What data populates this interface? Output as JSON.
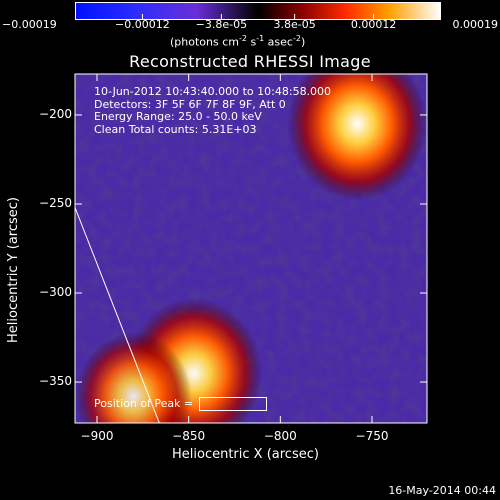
{
  "chart_data": {
    "type": "heatmap",
    "title": "Reconstructed RHESSI Image",
    "xlabel": "Heliocentric X (arcsec)",
    "ylabel": "Heliocentric Y (arcsec)",
    "xlim": [
      -912,
      -720
    ],
    "ylim": [
      -373,
      -177
    ],
    "xticks": [
      -900,
      -850,
      -800,
      -750
    ],
    "yticks": [
      -200,
      -250,
      -300,
      -350
    ],
    "colorbar": {
      "range": [
        -0.00019,
        0.00019
      ],
      "ticks": [
        "-0.00019",
        "-0.00012",
        "-3.8e-05",
        "3.8e-05",
        "0.00012",
        "0.00019"
      ],
      "unit_text": "(photons cm",
      "unit_exp1": "-2",
      "unit_mid": " s",
      "unit_exp2": "-1",
      "unit_mid2": " asec",
      "unit_exp3": "-2",
      "unit_end": ")"
    },
    "hotspots": [
      {
        "x": -758,
        "y": -205,
        "intensity": 1.0
      },
      {
        "x": -847,
        "y": -345,
        "intensity": 0.95
      },
      {
        "x": -880,
        "y": -358,
        "intensity": 0.7
      }
    ],
    "limb_line": {
      "x": [
        -912,
        -866
      ],
      "y": [
        -252,
        -373
      ]
    }
  },
  "annotations": {
    "time_range": "10-Jun-2012 10:43:40.000 to 10:48:58.000",
    "detectors": "Detectors: 3F 5F 6F 7F 8F 9F, Att 0",
    "energy": "Energy Range: 25.0 - 50.0 keV",
    "clean": "Clean    Total counts: 5.31E+03",
    "peak": "Position of Peak = "
  },
  "footer": "16-May-2014 00:44"
}
